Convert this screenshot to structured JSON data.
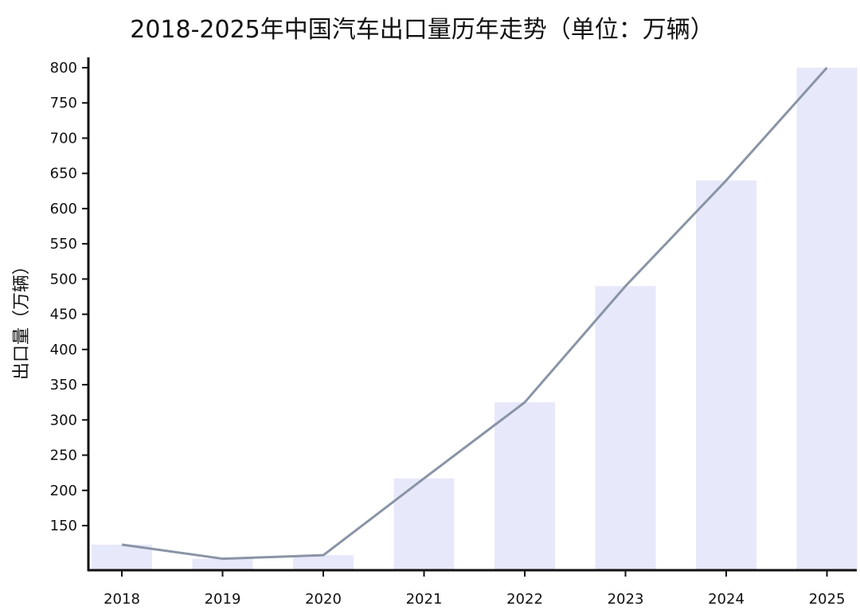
{
  "chart_data": {
    "type": "bar",
    "title": "2018-2025年中国汽车出口量历年走势（单位：万辆）",
    "xlabel": "",
    "ylabel": "出口量（万辆）",
    "categories": [
      "2018",
      "2019",
      "2020",
      "2021",
      "2022",
      "2023",
      "2024",
      "2025"
    ],
    "series": [
      {
        "values": [
          123,
          103,
          108,
          217,
          325,
          490,
          640,
          800
        ]
      }
    ],
    "line_overlay": true,
    "ylim": [
      100,
      815
    ],
    "yticks": [
      150,
      200,
      250,
      300,
      350,
      400,
      450,
      500,
      550,
      600,
      650,
      700,
      750,
      800
    ],
    "grid": false,
    "legend": "none",
    "colors": {
      "bar": "#e8e8fb",
      "line": "#8a94a6",
      "axis": "#111111"
    }
  }
}
